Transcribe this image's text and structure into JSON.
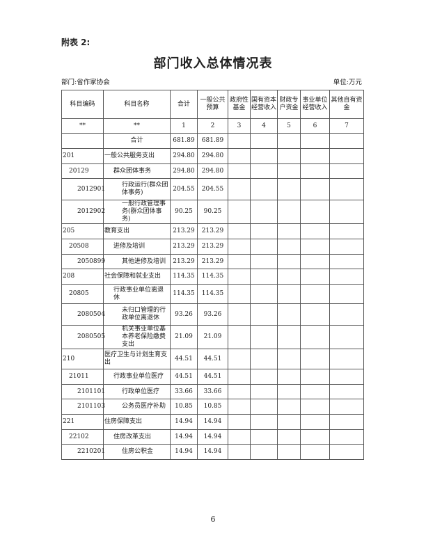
{
  "attachment_label": "附表 2:",
  "title": "部门收入总体情况表",
  "department": "部门:省作家协会",
  "unit": "单位:万元",
  "headers": [
    "科目编码",
    "科目名称",
    "合计",
    "一般公共预算",
    "政府性基金",
    "国有资本经营收入",
    "财政专户资金",
    "事业单位经营收入",
    "其他自有资金"
  ],
  "index_row": [
    "**",
    "**",
    "1",
    "2",
    "3",
    "4",
    "5",
    "6",
    "7"
  ],
  "total_row": {
    "name": "合计",
    "total": "681.89",
    "general": "681.89"
  },
  "rows": [
    {
      "code": "201",
      "name": "一般公共服务支出",
      "total": "294.80",
      "general": "294.80",
      "level": 1
    },
    {
      "code": "20129",
      "name": "群众团体事务",
      "total": "294.80",
      "general": "294.80",
      "level": 2
    },
    {
      "code": "2012901",
      "name": "行政运行(群众团体事务)",
      "total": "204.55",
      "general": "204.55",
      "level": 3
    },
    {
      "code": "2012902",
      "name": "一般行政管理事务(群众团体事务)",
      "total": "90.25",
      "general": "90.25",
      "level": 3
    },
    {
      "code": "205",
      "name": "教育支出",
      "total": "213.29",
      "general": "213.29",
      "level": 1
    },
    {
      "code": "20508",
      "name": "进修及培训",
      "total": "213.29",
      "general": "213.29",
      "level": 2
    },
    {
      "code": "2050899",
      "name": "其他进修及培训",
      "total": "213.29",
      "general": "213.29",
      "level": 3
    },
    {
      "code": "208",
      "name": "社会保障和就业支出",
      "total": "114.35",
      "general": "114.35",
      "level": 1
    },
    {
      "code": "20805",
      "name": "行政事业单位离退休",
      "total": "114.35",
      "general": "114.35",
      "level": 2
    },
    {
      "code": "2080504",
      "name": "未归口管理的行政单位离退休",
      "total": "93.26",
      "general": "93.26",
      "level": 3
    },
    {
      "code": "2080505",
      "name": "机关事业单位基本养老保险缴费支出",
      "total": "21.09",
      "general": "21.09",
      "level": 3
    },
    {
      "code": "210",
      "name": "医疗卫生与计划生育支出",
      "total": "44.51",
      "general": "44.51",
      "level": 1
    },
    {
      "code": "21011",
      "name": "行政事业单位医疗",
      "total": "44.51",
      "general": "44.51",
      "level": 2
    },
    {
      "code": "2101101",
      "name": "行政单位医疗",
      "total": "33.66",
      "general": "33.66",
      "level": 3
    },
    {
      "code": "2101103",
      "name": "公务员医疗补助",
      "total": "10.85",
      "general": "10.85",
      "level": 3
    },
    {
      "code": "221",
      "name": "住房保障支出",
      "total": "14.94",
      "general": "14.94",
      "level": 1
    },
    {
      "code": "22102",
      "name": "住房改革支出",
      "total": "14.94",
      "general": "14.94",
      "level": 2
    },
    {
      "code": "2210201",
      "name": "住房公积金",
      "total": "14.94",
      "general": "14.94",
      "level": 3
    }
  ],
  "page_number": "6"
}
